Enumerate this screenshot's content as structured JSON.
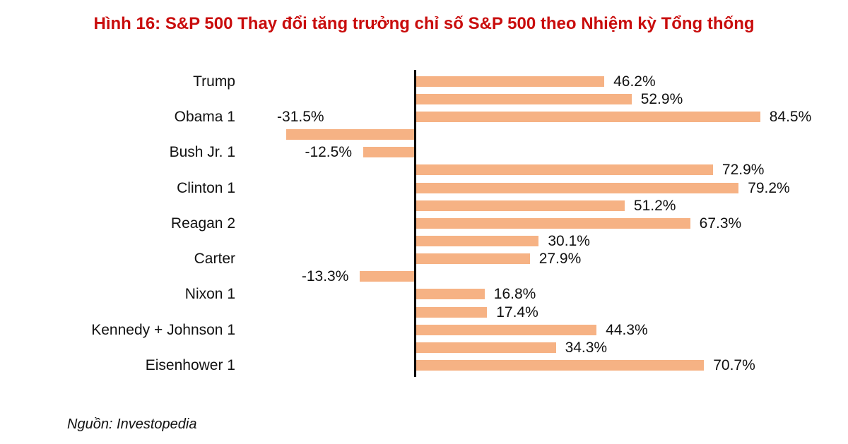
{
  "title": "Hình 16: S&P 500 Thay đổi tăng trưởng chỉ số S&P 500 theo Nhiệm kỳ Tổng thống",
  "source": "Nguồn: Investopedia",
  "colors": {
    "bar": "#F6B284",
    "title": "#C90D0D",
    "axis": "#000000",
    "text": "#111111"
  },
  "chart_data": {
    "type": "bar",
    "orientation": "horizontal",
    "title": "Hình 16: S&P 500 Thay đổi tăng trưởng chỉ số S&P 500 theo Nhiệm kỳ Tổng thống",
    "value_unit": "%",
    "xlim": [
      -40,
      105
    ],
    "grid": false,
    "legend": false,
    "note": "17 presidential-term bars; only alternating rows carry a visible category label",
    "bars": [
      {
        "category": "Trump",
        "value": 46.2,
        "label": "46.2%"
      },
      {
        "category": "",
        "value": 52.9,
        "label": "52.9%"
      },
      {
        "category": "Obama 1",
        "value": 84.5,
        "label": "84.5%"
      },
      {
        "category": "",
        "value": -31.5,
        "label": "-31.5%"
      },
      {
        "category": "Bush Jr. 1",
        "value": -12.5,
        "label": "-12.5%"
      },
      {
        "category": "",
        "value": 72.9,
        "label": "72.9%"
      },
      {
        "category": "Clinton 1",
        "value": 79.2,
        "label": "79.2%"
      },
      {
        "category": "",
        "value": 51.2,
        "label": "51.2%"
      },
      {
        "category": "Reagan 2",
        "value": 67.3,
        "label": "67.3%"
      },
      {
        "category": "",
        "value": 30.1,
        "label": "30.1%"
      },
      {
        "category": "Carter",
        "value": 27.9,
        "label": "27.9%"
      },
      {
        "category": "",
        "value": -13.3,
        "label": "-13.3%"
      },
      {
        "category": "Nixon 1",
        "value": 16.8,
        "label": "16.8%"
      },
      {
        "category": "",
        "value": 17.4,
        "label": "17.4%"
      },
      {
        "category": "Kennedy + Johnson 1",
        "value": 44.3,
        "label": "44.3%"
      },
      {
        "category": "",
        "value": 34.3,
        "label": "34.3%"
      },
      {
        "category": "Eisenhower 1",
        "value": 70.7,
        "label": "70.7%"
      }
    ]
  }
}
